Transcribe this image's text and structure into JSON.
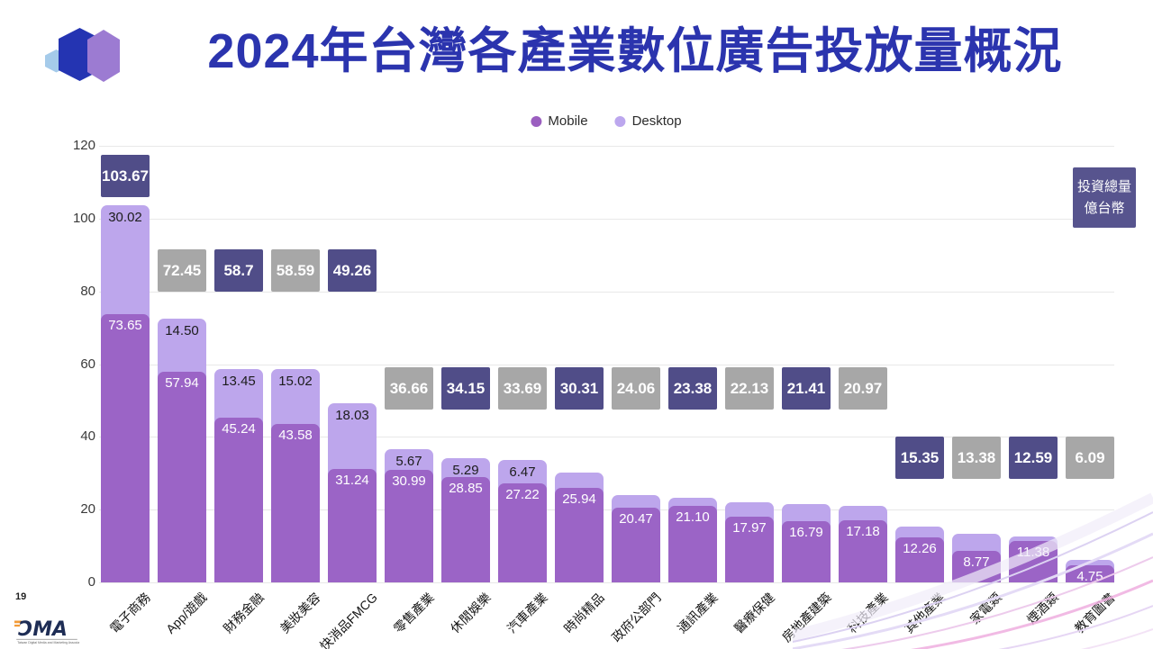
{
  "header": {
    "title": "2024年台灣各產業數位廣告投放量概況"
  },
  "legend": {
    "items": [
      {
        "label": "Mobile",
        "color": "#9B5FC0"
      },
      {
        "label": "Desktop",
        "color": "#BCA7EE"
      }
    ]
  },
  "unit_box": {
    "line1": "投資總量",
    "line2": "億台幣"
  },
  "page_number": "19",
  "footer_logo": {
    "name": "DMA",
    "wordmark": "ƆMA",
    "tagline": "Taiwan Digital Media and Marketing Association"
  },
  "colors": {
    "title_blue": "#2B34AE",
    "mobile": "#9B64C6",
    "desktop": "#BDA6EC",
    "badge_navy": "#504D88",
    "badge_gray": "#A7A7A7",
    "grid": "#E8E8E8"
  },
  "chart_data": {
    "type": "bar",
    "stacked": true,
    "title": "2024年台灣各產業數位廣告投放量概況",
    "unit_note": "投資總量 億台幣",
    "ylim": [
      0,
      120
    ],
    "yticks": [
      0,
      20,
      40,
      60,
      80,
      100,
      120
    ],
    "grid": "horizontal",
    "legend_position": "top",
    "categories": [
      "電子商務",
      "App/遊戲",
      "財務金融",
      "美妝美容",
      "快消品FMCG",
      "零售產業",
      "休閒娛樂",
      "汽車產業",
      "時尚精品",
      "政府公部門",
      "通訊產業",
      "醫療保健",
      "房地產建築",
      "科技產業",
      "其他產業",
      "家電類",
      "煙酒類",
      "教育圖書"
    ],
    "series": [
      {
        "name": "Mobile",
        "values": [
          73.65,
          57.94,
          45.24,
          43.58,
          31.24,
          30.99,
          28.85,
          27.22,
          25.94,
          20.47,
          21.1,
          17.97,
          16.79,
          17.18,
          12.26,
          8.77,
          11.38,
          4.75
        ]
      },
      {
        "name": "Desktop",
        "values": [
          30.02,
          14.5,
          13.45,
          15.02,
          18.03,
          5.67,
          5.29,
          6.47,
          4.37,
          3.59,
          2.28,
          4.16,
          4.62,
          3.79,
          3.09,
          4.61,
          1.21,
          1.34
        ]
      }
    ],
    "desktop_labels": [
      "30.02",
      "14.50",
      "13.45",
      "15.02",
      "18.03",
      "5.67",
      "5.29",
      "6.47",
      null,
      null,
      null,
      null,
      null,
      null,
      null,
      null,
      null,
      null
    ],
    "totals": [
      "103.67",
      "72.45",
      "58.7",
      "58.59",
      "49.26",
      "36.66",
      "34.15",
      "33.69",
      "30.31",
      "24.06",
      "23.38",
      "22.13",
      "21.41",
      "20.97",
      "15.35",
      "13.38",
      "12.59",
      "6.09"
    ],
    "total_badge_styles": [
      "navy",
      "gray",
      "navy",
      "gray",
      "navy",
      "gray",
      "navy",
      "gray",
      "navy",
      "gray",
      "navy",
      "gray",
      "navy",
      "gray",
      "navy",
      "gray",
      "navy",
      "gray"
    ],
    "total_badge_tier": [
      1,
      2,
      2,
      2,
      2,
      3,
      3,
      3,
      3,
      3,
      3,
      3,
      3,
      3,
      4,
      4,
      4,
      4
    ]
  }
}
